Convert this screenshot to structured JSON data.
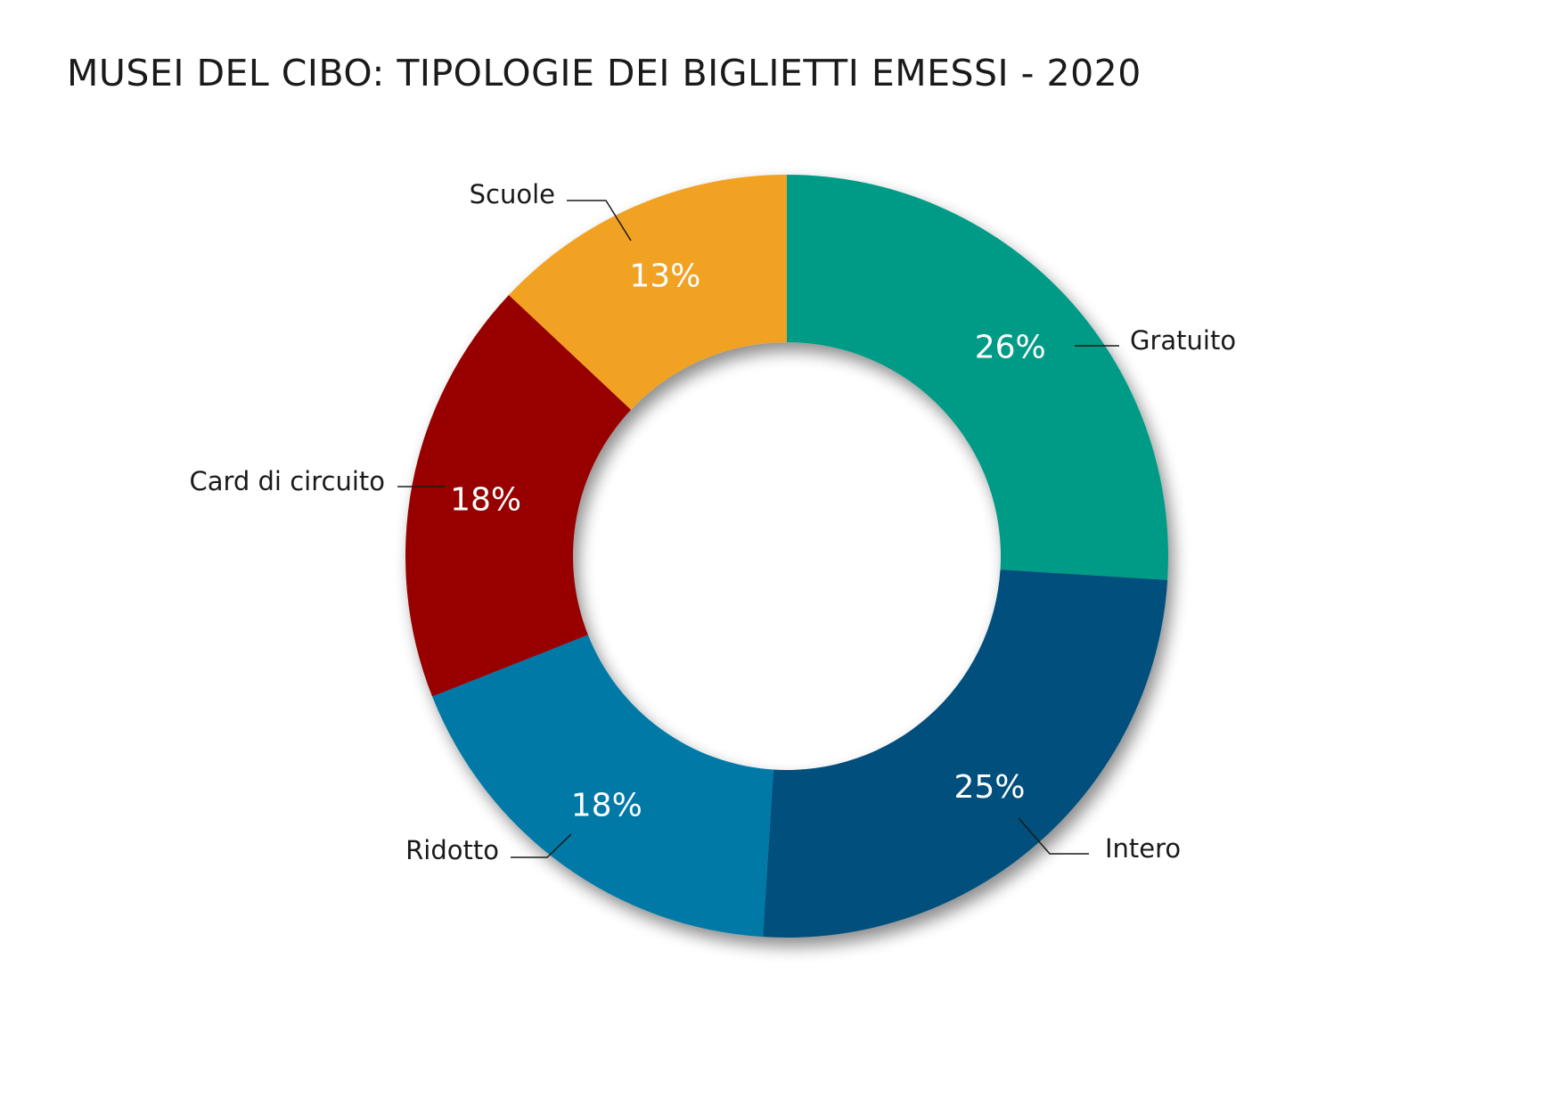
{
  "chart_data": {
    "type": "pie",
    "subtype": "donut",
    "title": "MUSEI DEL CIBO: TIPOLOGIE DEI BIGLIETTI EMESSI - 2020",
    "value_unit": "%",
    "categories": [
      "Gratuito",
      "Intero",
      "Ridotto",
      "Card di circuito",
      "Scuole"
    ],
    "values": [
      26,
      25,
      18,
      18,
      13
    ],
    "labels": [
      "26%",
      "25%",
      "18%",
      "18%",
      "13%"
    ],
    "colors": [
      "#029b86",
      "#04507b",
      "#0279a6",
      "#980006",
      "#f1a220"
    ],
    "start_angle": "12 o'clock",
    "direction": "clockwise",
    "legend": "none (direct labels with leader lines)"
  }
}
